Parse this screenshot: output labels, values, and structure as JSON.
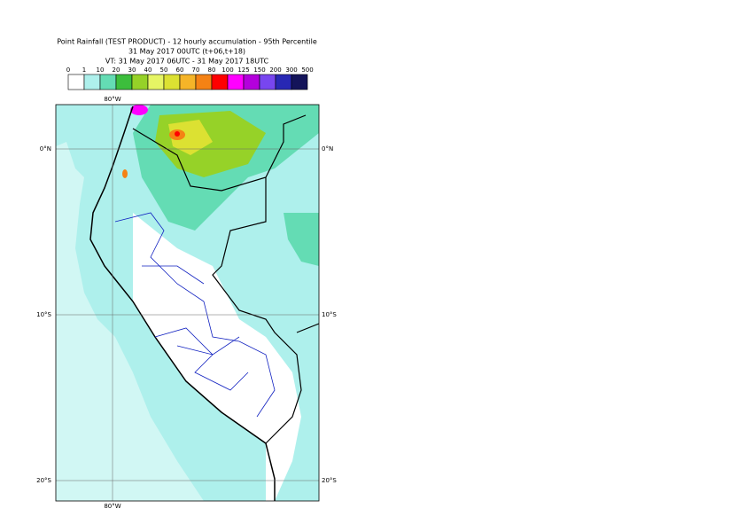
{
  "title": {
    "lines": [
      "Point Rainfall (TEST PRODUCT) - 12 hourly accumulation - 95th Percentile",
      "31 May 2017 00UTC (t+06,t+18)",
      "VT: 31 May 2017 06UTC - 31 May 2017 18UTC"
    ]
  },
  "legend": {
    "labels": [
      "0",
      "1",
      "10",
      "20",
      "30",
      "40",
      "50",
      "60",
      "70",
      "80",
      "100",
      "125",
      "150",
      "200",
      "300",
      "500"
    ],
    "colors": [
      "#ffffff",
      "#aef0ec",
      "#64dcb4",
      "#3cbe3c",
      "#96d228",
      "#e6f564",
      "#dce132",
      "#f5b428",
      "#f58214",
      "#ff0000",
      "#ff00ff",
      "#b400dc",
      "#7846f0",
      "#2828b4",
      "#14145a"
    ]
  },
  "map": {
    "lon_label_top": "80°W",
    "lon_label_bottom": "80°W",
    "lat_labels_left": [
      "0°N",
      "10°S",
      "20°S"
    ],
    "lat_labels_right": [
      "0°N",
      "10°S",
      "20°S"
    ]
  }
}
